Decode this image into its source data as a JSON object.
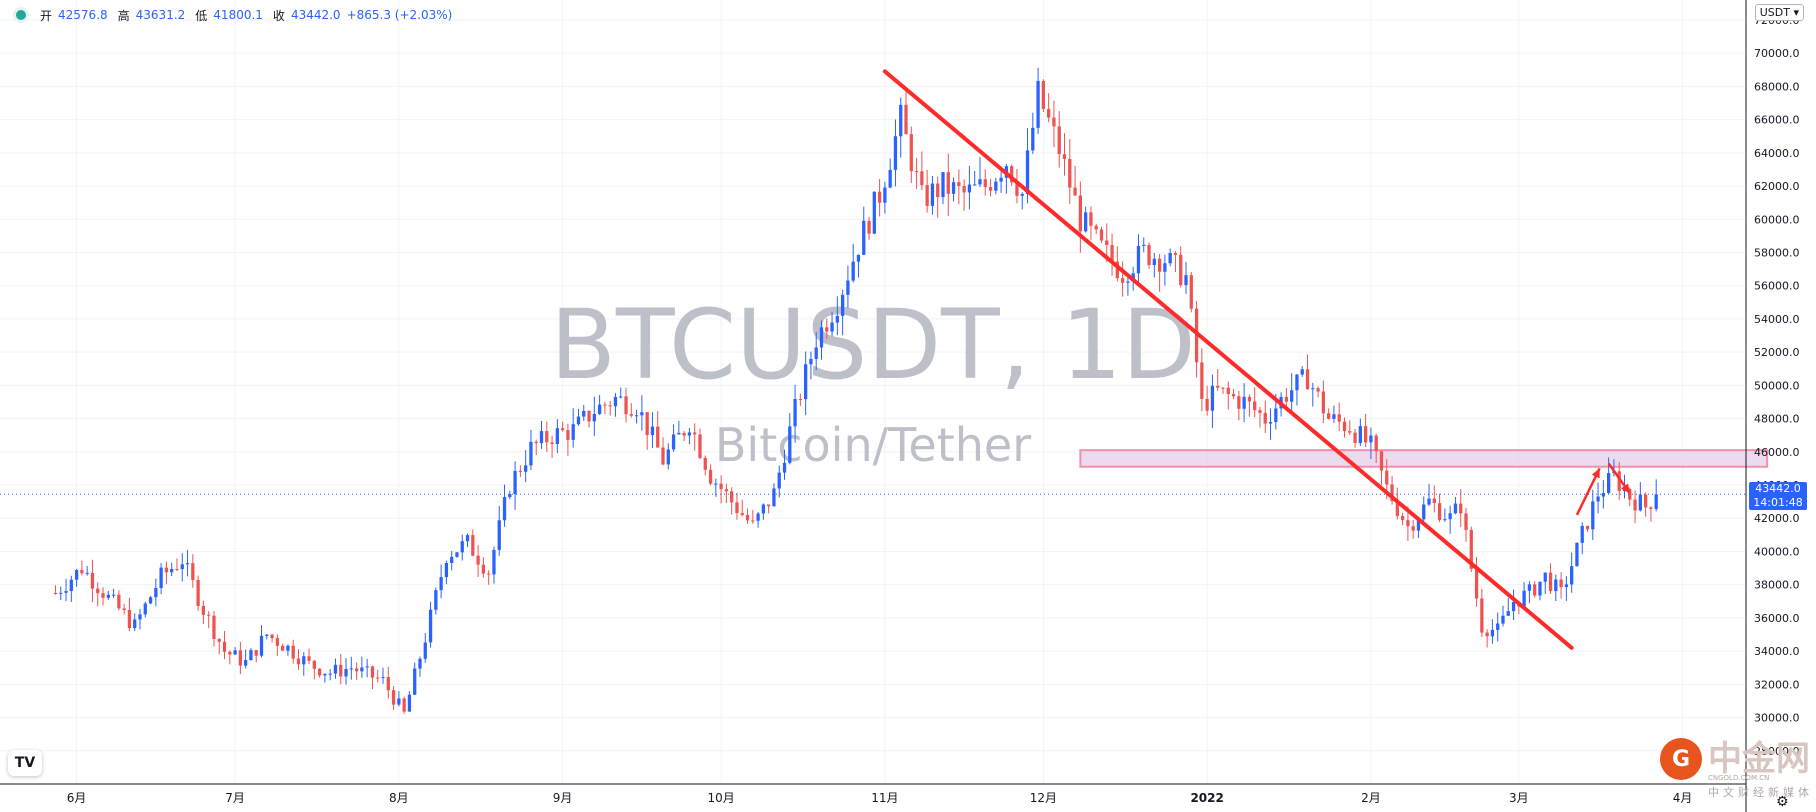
{
  "header": {
    "open_label": "开",
    "open": "42576.8",
    "high_label": "高",
    "high": "43631.2",
    "low_label": "低",
    "low": "41800.1",
    "close_label": "收",
    "close": "43442.0",
    "change": "+865.3 (+2.03%)"
  },
  "currency_button": "USDT",
  "watermark": {
    "symbol": "BTCUSDT, 1D",
    "name": "Bitcoin/Tether"
  },
  "last_price_label": {
    "price": "43442.0",
    "countdown": "14:01:48"
  },
  "logo_text": "TV",
  "brand": {
    "name": "中金网",
    "domain": "CNGOLD.COM.CN",
    "tagline": "中文财经新媒体"
  },
  "settings_icon": "gear-icon",
  "chart_data": {
    "type": "candlestick",
    "y_ticks": [
      28000,
      30000,
      32000,
      34000,
      36000,
      38000,
      40000,
      42000,
      44000,
      46000,
      48000,
      50000,
      52000,
      54000,
      56000,
      58000,
      60000,
      62000,
      64000,
      66000,
      68000,
      70000,
      72000
    ],
    "y_tick_labels": [
      "28000.0",
      "30000.0",
      "32000.0",
      "34000.0",
      "36000.0",
      "38000.0",
      "40000.0",
      "42000.0",
      "44000.0",
      "46000.0",
      "48000.0",
      "50000.0",
      "52000.0",
      "54000.0",
      "56000.0",
      "58000.0",
      "60000.0",
      "62000.0",
      "64000.0",
      "66000.0",
      "68000.0",
      "70000.0",
      "72000.0"
    ],
    "ylim": [
      26000,
      73200
    ],
    "x_labels": [
      "6月",
      "7月",
      "8月",
      "9月",
      "10月",
      "11月",
      "12月",
      "2022",
      "2月",
      "3月",
      "4月"
    ],
    "x_label_days": [
      4,
      34,
      65,
      96,
      126,
      157,
      187,
      218,
      249,
      277,
      308
    ],
    "xlim": [
      -10.5,
      320
    ],
    "colors": {
      "up": "#2962ff",
      "down": "#ef5350",
      "trend": "#ff2a2a",
      "zone_fill": "#e6cdea",
      "zone_stroke": "#f48fb1"
    },
    "anchors": [
      [
        0,
        37500
      ],
      [
        5,
        39000
      ],
      [
        10,
        37200
      ],
      [
        15,
        35500
      ],
      [
        20,
        38500
      ],
      [
        24,
        39500
      ],
      [
        28,
        36500
      ],
      [
        32,
        34000
      ],
      [
        36,
        33300
      ],
      [
        40,
        35000
      ],
      [
        44,
        34200
      ],
      [
        48,
        33200
      ],
      [
        52,
        32700
      ],
      [
        56,
        33000
      ],
      [
        62,
        32200
      ],
      [
        66,
        30200
      ],
      [
        70,
        34800
      ],
      [
        74,
        39800
      ],
      [
        78,
        40500
      ],
      [
        82,
        38800
      ],
      [
        86,
        44000
      ],
      [
        90,
        46200
      ],
      [
        94,
        47000
      ],
      [
        98,
        47300
      ],
      [
        102,
        48500
      ],
      [
        106,
        49200
      ],
      [
        110,
        48800
      ],
      [
        115,
        45500
      ],
      [
        120,
        47800
      ],
      [
        124,
        44600
      ],
      [
        128,
        43000
      ],
      [
        132,
        41500
      ],
      [
        136,
        43500
      ],
      [
        140,
        48500
      ],
      [
        144,
        52800
      ],
      [
        148,
        55000
      ],
      [
        152,
        58500
      ],
      [
        156,
        61500
      ],
      [
        160,
        66000
      ],
      [
        164,
        61200
      ],
      [
        168,
        62000
      ],
      [
        172,
        61500
      ],
      [
        176,
        62000
      ],
      [
        180,
        63500
      ],
      [
        183,
        61500
      ],
      [
        186,
        67500
      ],
      [
        190,
        64200
      ],
      [
        194,
        60000
      ],
      [
        198,
        58200
      ],
      [
        202,
        56800
      ],
      [
        206,
        58000
      ],
      [
        210,
        57600
      ],
      [
        214,
        56500
      ],
      [
        217,
        48800
      ],
      [
        220,
        49600
      ],
      [
        225,
        49000
      ],
      [
        229,
        48000
      ],
      [
        233,
        49500
      ],
      [
        237,
        50500
      ],
      [
        241,
        48000
      ],
      [
        245,
        47500
      ],
      [
        249,
        46300
      ],
      [
        252,
        43800
      ],
      [
        256,
        41500
      ],
      [
        260,
        43000
      ],
      [
        264,
        42000
      ],
      [
        266,
        42800
      ],
      [
        268,
        39000
      ],
      [
        270,
        35500
      ],
      [
        273,
        35200
      ],
      [
        276,
        37000
      ],
      [
        279,
        37500
      ],
      [
        282,
        38500
      ],
      [
        285,
        37400
      ],
      [
        289,
        41000
      ],
      [
        292,
        43500
      ],
      [
        295,
        44500
      ],
      [
        298,
        43300
      ],
      [
        301,
        42700
      ],
      [
        303,
        43442
      ]
    ],
    "trendline": [
      [
        157,
        68900
      ],
      [
        287,
        34200
      ]
    ],
    "resistance_zone": {
      "from_day": 194,
      "to_day": 324,
      "low": 45100,
      "high": 46100
    },
    "projection_arrows": [
      [
        [
          288,
          42200
        ],
        [
          292.3,
          45000
        ]
      ],
      [
        [
          294,
          45300
        ],
        [
          298,
          43500
        ]
      ]
    ]
  }
}
